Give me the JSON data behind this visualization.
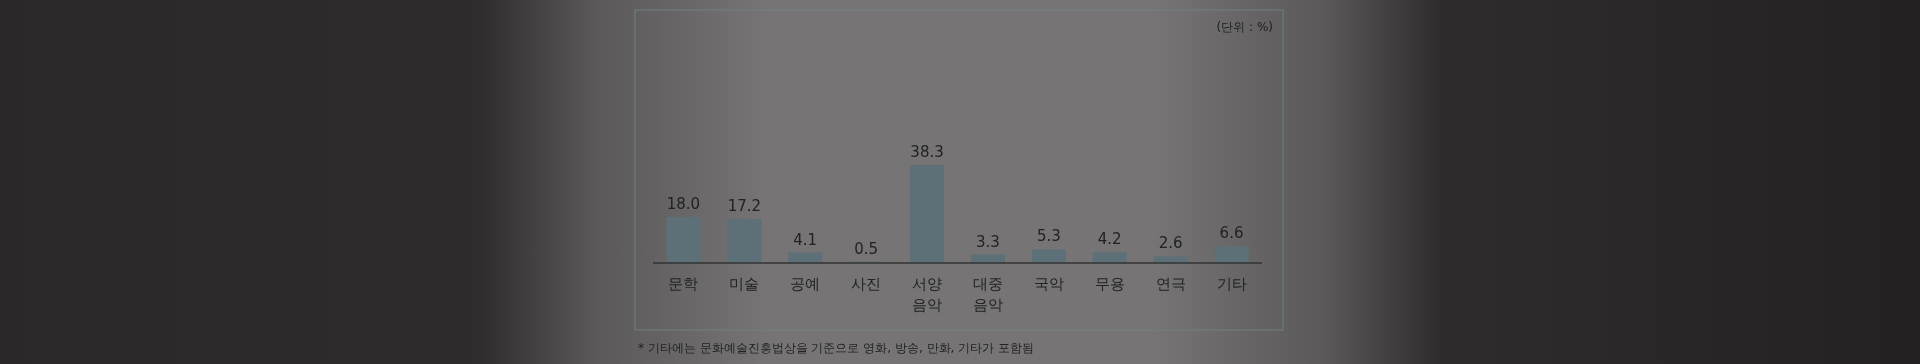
{
  "chart_data": {
    "type": "bar",
    "categories": [
      "문학",
      "미술",
      "공예",
      "사진",
      "서양\n음악",
      "대중\n음악",
      "국악",
      "무용",
      "연극",
      "기타"
    ],
    "values": [
      18.0,
      17.2,
      4.1,
      0.5,
      38.3,
      3.3,
      5.3,
      4.2,
      2.6,
      6.6
    ],
    "color": "#5e7077",
    "value_labels": [
      "18.0",
      "17.2",
      "4.1",
      "0.5",
      "38.3",
      "3.3",
      "5.3",
      "4.2",
      "2.6",
      "6.6"
    ],
    "annotations": [
      "(단위 : %)",
      "* 기타에는 문화예술진흥법상을 기준으로 영화, 방송, 만화, 기타가 포함됨"
    ]
  }
}
